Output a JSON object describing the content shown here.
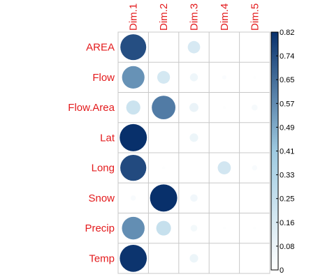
{
  "chart_data": {
    "type": "correlation-plot",
    "rows": [
      "AREA",
      "Flow",
      "Flow.Area",
      "Lat",
      "Long",
      "Snow",
      "Precip",
      "Temp"
    ],
    "columns": [
      "Dim.1",
      "Dim.2",
      "Dim.3",
      "Dim.4",
      "Dim.5"
    ],
    "values": [
      [
        0.74,
        0.0,
        0.17,
        0.0,
        0.0
      ],
      [
        0.56,
        0.18,
        0.07,
        0.02,
        0.01
      ],
      [
        0.22,
        0.62,
        0.09,
        0.01,
        0.04
      ],
      [
        0.82,
        0.0,
        0.08,
        0.0,
        0.0
      ],
      [
        0.75,
        0.01,
        0.0,
        0.19,
        0.03
      ],
      [
        0.03,
        0.82,
        0.06,
        0.0,
        0.0
      ],
      [
        0.57,
        0.24,
        0.05,
        0.01,
        0.01
      ],
      [
        0.81,
        0.0,
        0.08,
        0.0,
        0.0
      ]
    ],
    "value_range": [
      0,
      0.82
    ],
    "legend_ticks": [
      "0",
      "0.08",
      "0.16",
      "0.25",
      "0.33",
      "0.41",
      "0.49",
      "0.57",
      "0.65",
      "0.74",
      "0.82"
    ],
    "legend_position": "right",
    "grid": true,
    "colors": {
      "label": "#e31a1c",
      "grid": "#c8c8c8",
      "low": "#ffffff",
      "mid": "#9ecae1",
      "high": "#08306b"
    }
  }
}
